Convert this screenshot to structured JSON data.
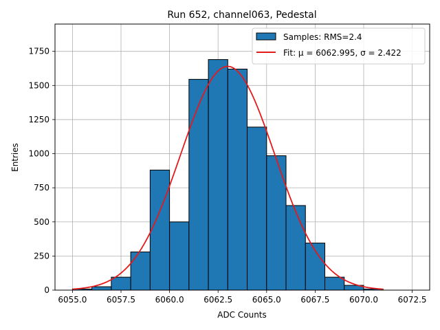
{
  "chart_data": {
    "type": "bar",
    "title": "Run 652, channel063, Pedestal",
    "xlabel": "ADC Counts",
    "ylabel": "Entries",
    "xlim": [
      6054.1,
      6073.4
    ],
    "ylim": [
      0,
      1950
    ],
    "xticks": [
      6055.0,
      6057.5,
      6060.0,
      6062.5,
      6065.0,
      6067.5,
      6070.0,
      6072.5
    ],
    "xtick_labels": [
      "6055.0",
      "6057.5",
      "6060.0",
      "6062.5",
      "6065.0",
      "6067.5",
      "6070.0",
      "6072.5"
    ],
    "yticks": [
      0,
      250,
      500,
      750,
      1000,
      1250,
      1500,
      1750
    ],
    "ytick_labels": [
      "0",
      "250",
      "500",
      "750",
      "1000",
      "1250",
      "1500",
      "1750"
    ],
    "grid": true,
    "legend_position": "top-right",
    "histogram": {
      "name": "Samples: RMS=2.4",
      "color": "#1f77b4",
      "edge_color": "#000000",
      "bin_edges": [
        6055.0,
        6056.0,
        6057.0,
        6058.0,
        6059.0,
        6060.0,
        6061.0,
        6062.0,
        6063.0,
        6064.0,
        6065.0,
        6066.0,
        6067.0,
        6068.0,
        6069.0,
        6070.0,
        6071.0
      ],
      "counts": [
        8,
        25,
        95,
        280,
        880,
        500,
        1545,
        1690,
        1620,
        1195,
        985,
        620,
        345,
        95,
        35,
        8
      ]
    },
    "fit": {
      "name": "Fit: μ = 6062.995, σ = 2.422",
      "color": "#e31a1c",
      "mu": 6062.995,
      "sigma": 2.422,
      "amplitude": 1640,
      "x_range": [
        6055.0,
        6071.0
      ]
    }
  }
}
